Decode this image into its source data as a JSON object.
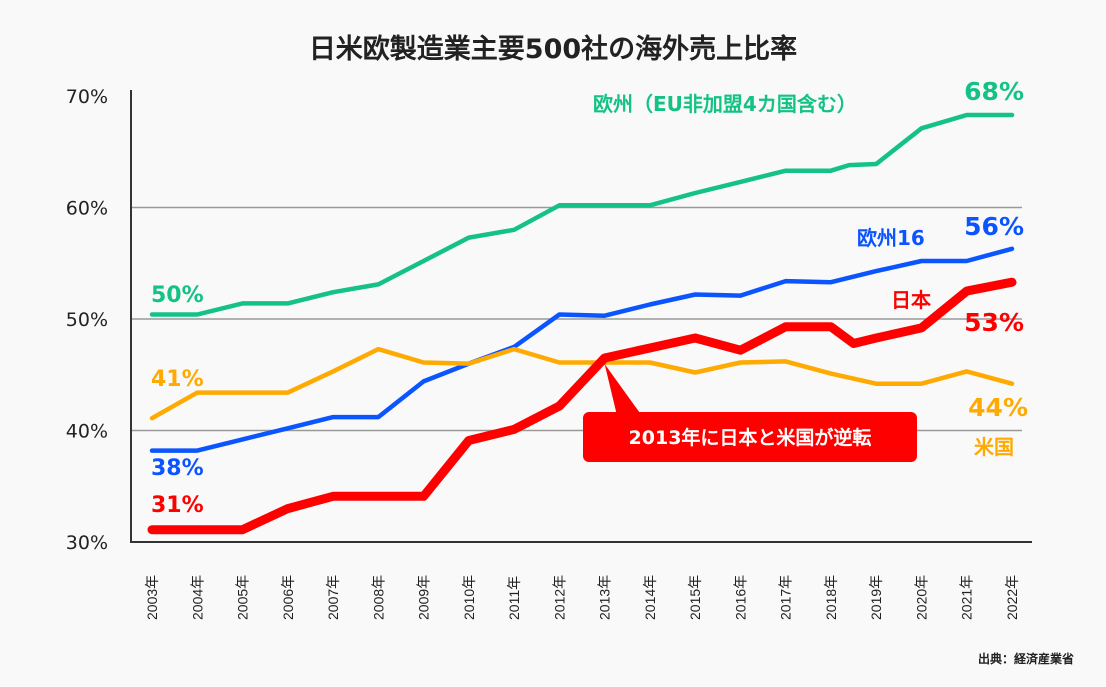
{
  "chart_data": {
    "type": "line",
    "title": "日米欧製造業主要500社の海外売上比率",
    "source": "出典：経済産業省",
    "ylim": [
      30,
      70
    ],
    "yticks": [
      30,
      40,
      50,
      60,
      70
    ],
    "ytick_labels": [
      "30%",
      "40%",
      "50%",
      "60%",
      "70%"
    ],
    "xlim": [
      2003,
      2022
    ],
    "xtick_labels": [
      "2003年",
      "2004年",
      "2005年",
      "2006年",
      "2007年",
      "2008年",
      "2009年",
      "2010年",
      "2011年",
      "2012年",
      "2013年",
      "2014年",
      "2015年",
      "2016年",
      "2017年",
      "2018年",
      "2019年",
      "2020年",
      "2021年",
      "2022年"
    ],
    "grid": "horizontal",
    "series": [
      {
        "name": "欧州（EU非加盟4カ国含む）",
        "color": "#14c285",
        "start_label": "50%",
        "end_label": "68%",
        "x": [
          2003,
          2004,
          2005,
          2006,
          2007,
          2008,
          2009,
          2010,
          2011,
          2012,
          2013,
          2014,
          2015,
          2016,
          2017,
          2018,
          2018.4,
          2019,
          2020,
          2021,
          2022
        ],
        "values": [
          50.4,
          50.4,
          51.4,
          51.4,
          52.4,
          53.1,
          55.2,
          57.3,
          58.0,
          60.2,
          60.2,
          60.2,
          61.3,
          62.3,
          63.3,
          63.3,
          63.8,
          63.9,
          67.1,
          68.3,
          68.3
        ]
      },
      {
        "name": "欧州16",
        "color": "#0a55ff",
        "start_label": "38%",
        "end_label": "56%",
        "x": [
          2003,
          2004,
          2005,
          2006,
          2007,
          2008,
          2009,
          2010,
          2011,
          2012,
          2013,
          2014,
          2015,
          2016,
          2017,
          2018,
          2019,
          2020,
          2021,
          2022
        ],
        "values": [
          38.2,
          38.2,
          39.2,
          40.2,
          41.2,
          41.2,
          44.4,
          46.0,
          47.5,
          50.4,
          50.3,
          51.3,
          52.2,
          52.1,
          53.4,
          53.3,
          54.3,
          55.2,
          55.2,
          56.3
        ]
      },
      {
        "name": "米国",
        "color": "#ffaa00",
        "start_label": "41%",
        "end_label": "44%",
        "x": [
          2003,
          2004,
          2005,
          2006,
          2007,
          2008,
          2009,
          2010,
          2011,
          2012,
          2013,
          2014,
          2015,
          2016,
          2017,
          2018,
          2019,
          2020,
          2021,
          2022
        ],
        "values": [
          41.1,
          43.4,
          43.4,
          43.4,
          45.3,
          47.3,
          46.1,
          46.0,
          47.3,
          46.1,
          46.1,
          46.1,
          45.2,
          46.1,
          46.2,
          45.1,
          44.2,
          44.2,
          45.3,
          44.2
        ]
      },
      {
        "name": "日本",
        "color": "#ff0000",
        "start_label": "31%",
        "end_label": "53%",
        "x": [
          2003,
          2004,
          2005,
          2006,
          2007,
          2008,
          2009,
          2010,
          2011,
          2012,
          2013,
          2014,
          2015,
          2016,
          2017,
          2018,
          2018.5,
          2019,
          2020,
          2021,
          2022
        ],
        "values": [
          31.1,
          31.1,
          31.1,
          33.0,
          34.1,
          34.1,
          34.1,
          39.1,
          40.1,
          42.2,
          46.5,
          47.4,
          48.3,
          47.2,
          49.3,
          49.3,
          47.8,
          48.3,
          49.2,
          52.5,
          53.3
        ]
      }
    ],
    "annotation": {
      "text": "2013年に日本と米国が逆転",
      "x": 2013,
      "value": 46.5,
      "color": "#ff0000"
    }
  }
}
